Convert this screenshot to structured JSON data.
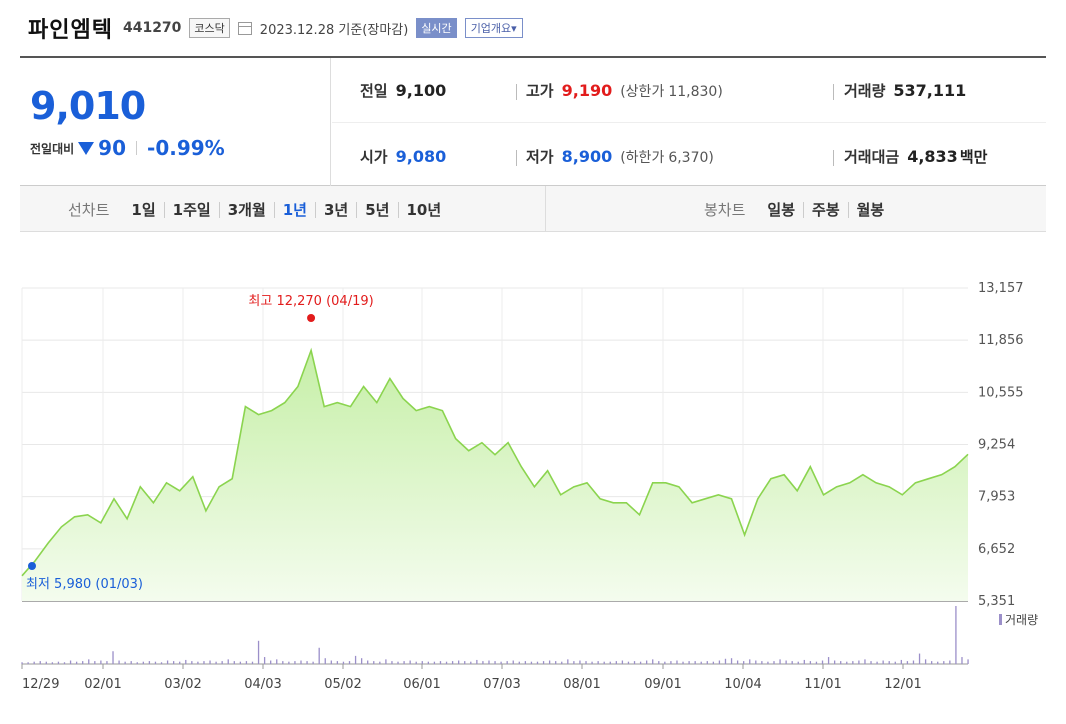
{
  "header": {
    "name": "파인엠텍",
    "code": "441270",
    "market": "코스닥",
    "date_text": "2023.12.28 기준(장마감)",
    "realtime_label": "실시간",
    "company_label": "기업개요▾"
  },
  "quote": {
    "price": "9,010",
    "change_label": "전일대비",
    "change": "90",
    "change_pct": "-0.99%",
    "prev_label": "전일",
    "prev": "9,100",
    "high_label": "고가",
    "high": "9,190",
    "upper_label": "(상한가",
    "upper": "11,830)",
    "volume_label": "거래량",
    "volume": "537,111",
    "open_label": "시가",
    "open": "9,080",
    "low_label": "저가",
    "low": "8,900",
    "lower_label": "(하한가",
    "lower": "6,370)",
    "amount_label": "거래대금",
    "amount": "4,833",
    "amount_unit": "백만"
  },
  "tabs": {
    "line_group": "선차트",
    "line": [
      "1일",
      "1주일",
      "3개월",
      "1년",
      "3년",
      "5년",
      "10년"
    ],
    "active": "1년",
    "candle_group": "봉차트",
    "candle": [
      "일봉",
      "주봉",
      "월봉"
    ]
  },
  "colors": {
    "line": "#8bd44f",
    "fill_top": "#c6efa7",
    "fill_bottom": "#f4fcee",
    "volume": "#9b8fc9",
    "up": "#e21c1c",
    "down": "#1a5fd8"
  },
  "chart_data": {
    "type": "area",
    "x_ticks": [
      "12/29",
      "02/01",
      "03/02",
      "04/03",
      "05/02",
      "06/01",
      "07/03",
      "08/01",
      "09/01",
      "10/04",
      "11/01",
      "12/01"
    ],
    "y_ticks": [
      "13,157",
      "11,856",
      "10,555",
      "9,254",
      "7,953",
      "6,652",
      "5,351"
    ],
    "ylim": [
      5351,
      13157
    ],
    "max_label": "최고 12,270 (04/19)",
    "min_label": "최저 5,980 (01/03)",
    "volume_legend": "거래량",
    "series": [
      {
        "points": [
          [
            "12/29",
            5980
          ],
          [
            "01/05",
            6350
          ],
          [
            "01/12",
            6800
          ],
          [
            "01/19",
            7200
          ],
          [
            "01/26",
            7450
          ],
          [
            "02/01",
            7500
          ],
          [
            "02/06",
            7300
          ],
          [
            "02/10",
            7900
          ],
          [
            "02/15",
            7400
          ],
          [
            "02/20",
            8200
          ],
          [
            "02/24",
            7800
          ],
          [
            "03/02",
            8300
          ],
          [
            "03/07",
            8100
          ],
          [
            "03/10",
            8450
          ],
          [
            "03/15",
            7600
          ],
          [
            "03/20",
            8200
          ],
          [
            "03/24",
            8400
          ],
          [
            "03/28",
            10200
          ],
          [
            "04/03",
            10000
          ],
          [
            "04/07",
            10100
          ],
          [
            "04/12",
            10300
          ],
          [
            "04/17",
            10700
          ],
          [
            "04/19",
            11600
          ],
          [
            "04/24",
            10200
          ],
          [
            "04/28",
            10300
          ],
          [
            "05/02",
            10200
          ],
          [
            "05/08",
            10700
          ],
          [
            "05/12",
            10300
          ],
          [
            "05/17",
            10900
          ],
          [
            "05/22",
            10400
          ],
          [
            "05/26",
            10100
          ],
          [
            "06/01",
            10200
          ],
          [
            "06/07",
            10100
          ],
          [
            "06/12",
            9400
          ],
          [
            "06/16",
            9100
          ],
          [
            "06/21",
            9300
          ],
          [
            "06/26",
            9000
          ],
          [
            "07/03",
            9300
          ],
          [
            "07/07",
            8700
          ],
          [
            "07/12",
            8200
          ],
          [
            "07/17",
            8600
          ],
          [
            "07/21",
            8000
          ],
          [
            "07/26",
            8200
          ],
          [
            "08/01",
            8300
          ],
          [
            "08/07",
            7900
          ],
          [
            "08/11",
            7800
          ],
          [
            "08/17",
            7800
          ],
          [
            "08/23",
            7500
          ],
          [
            "08/29",
            8300
          ],
          [
            "09/01",
            8300
          ],
          [
            "09/06",
            8200
          ],
          [
            "09/12",
            7800
          ],
          [
            "09/15",
            7900
          ],
          [
            "09/20",
            8000
          ],
          [
            "09/25",
            7900
          ],
          [
            "10/04",
            7000
          ],
          [
            "10/10",
            7900
          ],
          [
            "10/13",
            8400
          ],
          [
            "10/18",
            8500
          ],
          [
            "10/23",
            8100
          ],
          [
            "10/27",
            8700
          ],
          [
            "11/01",
            8000
          ],
          [
            "11/06",
            8200
          ],
          [
            "11/10",
            8300
          ],
          [
            "11/15",
            8500
          ],
          [
            "11/20",
            8300
          ],
          [
            "11/24",
            8200
          ],
          [
            "12/01",
            8000
          ],
          [
            "12/06",
            8300
          ],
          [
            "12/12",
            8400
          ],
          [
            "12/18",
            8500
          ],
          [
            "12/22",
            8700
          ],
          [
            "12/28",
            9010
          ]
        ]
      }
    ],
    "volume": [
      3,
      3,
      4,
      5,
      4,
      3,
      4,
      3,
      6,
      4,
      5,
      8,
      5,
      6,
      5,
      22,
      6,
      4,
      5,
      3,
      4,
      5,
      4,
      3,
      6,
      5,
      4,
      7,
      5,
      4,
      5,
      6,
      4,
      5,
      8,
      5,
      4,
      5,
      4,
      40,
      12,
      6,
      8,
      5,
      4,
      5,
      6,
      5,
      4,
      28,
      10,
      6,
      5,
      4,
      5,
      14,
      10,
      6,
      5,
      4,
      8,
      5,
      4,
      5,
      6,
      4,
      5,
      4,
      4,
      5,
      4,
      5,
      6,
      5,
      4,
      7,
      5,
      6,
      5,
      4,
      5,
      6,
      4,
      5,
      4,
      4,
      5,
      6,
      5,
      4,
      8,
      5,
      6,
      5,
      4,
      5,
      4,
      4,
      5,
      6,
      4,
      5,
      4,
      6,
      8,
      5,
      4,
      5,
      6,
      4,
      5,
      5,
      4,
      5,
      4,
      6,
      9,
      10,
      6,
      5,
      8,
      6,
      5,
      4,
      5,
      8,
      6,
      5,
      4,
      7,
      5,
      4,
      6,
      12,
      6,
      5,
      4,
      5,
      6,
      8,
      5,
      4,
      6,
      5,
      4,
      7,
      5,
      6,
      18,
      8,
      5,
      4,
      5,
      6,
      100,
      12,
      8
    ]
  }
}
